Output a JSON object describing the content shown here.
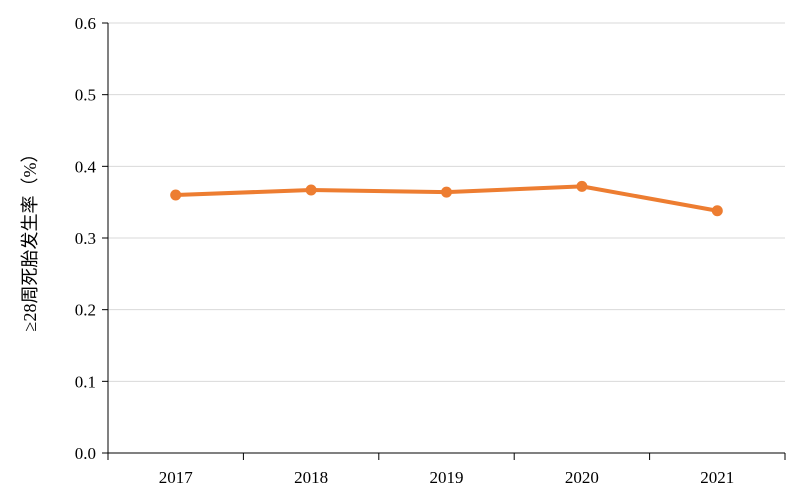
{
  "chart_data": {
    "type": "line",
    "categories": [
      "2017",
      "2018",
      "2019",
      "2020",
      "2021"
    ],
    "series": [
      {
        "values": [
          0.36,
          0.367,
          0.364,
          0.372,
          0.338
        ],
        "color": "#ED7D31"
      }
    ],
    "title": "",
    "xlabel": "",
    "ylabel": "≥28周死胎发生率（%）",
    "ylim": [
      0,
      0.6
    ],
    "yticks": [
      0.0,
      0.1,
      0.2,
      0.3,
      0.4,
      0.5,
      0.6
    ],
    "ytick_labels": [
      "0.0",
      "0.1",
      "0.2",
      "0.3",
      "0.4",
      "0.5",
      "0.6"
    ],
    "grid": true,
    "legend": "none"
  }
}
